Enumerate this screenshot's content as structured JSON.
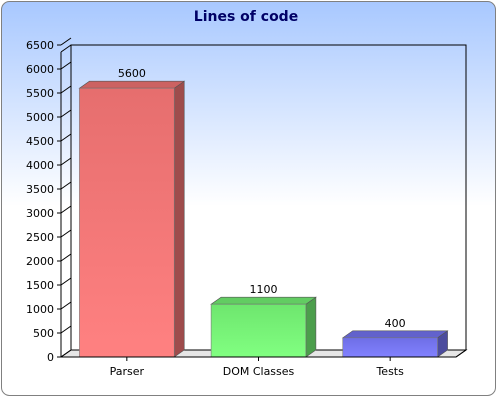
{
  "chart_data": {
    "type": "bar",
    "title": "Lines of code",
    "xlabel": "",
    "ylabel": "",
    "categories": [
      "Parser",
      "DOM Classes",
      "Tests"
    ],
    "values": [
      5600,
      1100,
      400
    ],
    "value_labels": [
      "5600",
      "1100",
      "400"
    ],
    "ylim": [
      0,
      6500
    ],
    "yticks": [
      0,
      500,
      1000,
      1500,
      2000,
      2500,
      3000,
      3500,
      4000,
      4500,
      5000,
      5500,
      6000,
      6500
    ],
    "ytick_labels": [
      "0",
      "500",
      "1000",
      "1500",
      "2000",
      "2500",
      "3000",
      "3500",
      "4000",
      "4500",
      "5000",
      "5500",
      "6000",
      "6500"
    ],
    "grid": false,
    "legend": "none",
    "style": "3d",
    "colors": [
      "#ff7a7a",
      "#7aff7a",
      "#7a7aff"
    ],
    "background_gradient": [
      "#a8c8ff",
      "#ffffff"
    ]
  }
}
